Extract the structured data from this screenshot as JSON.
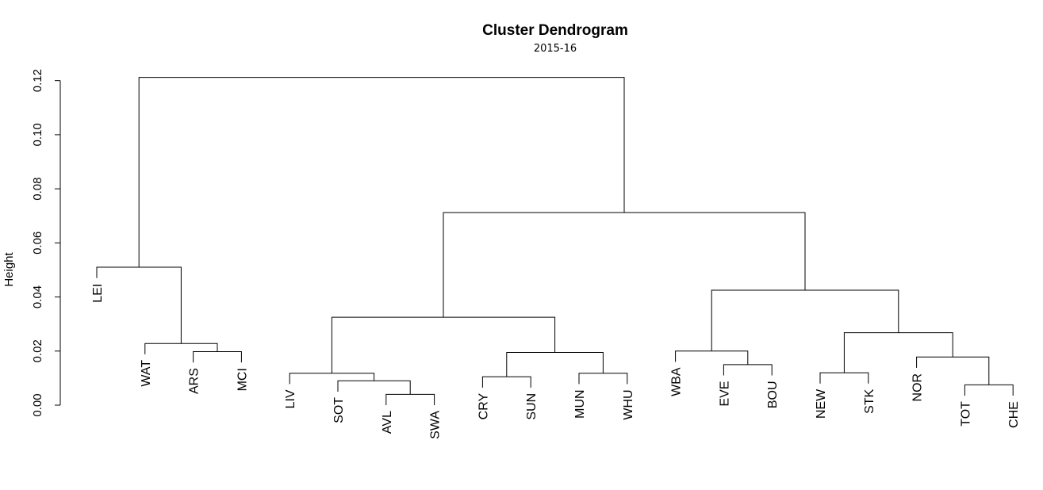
{
  "chart_data": {
    "type": "dendrogram",
    "title": "Cluster Dendrogram",
    "subtitle": "2015-16",
    "ylabel": "Height",
    "ylim": [
      0,
      0.127
    ],
    "yticks": [
      "0.00",
      "0.02",
      "0.04",
      "0.06",
      "0.08",
      "0.10",
      "0.12"
    ],
    "ytick_values": [
      0,
      0.02,
      0.04,
      0.06,
      0.08,
      0.1,
      0.12
    ],
    "leaves": [
      "LEI",
      "WAT",
      "ARS",
      "MCI",
      "LIV",
      "SOT",
      "AVL",
      "SWA",
      "CRY",
      "SUN",
      "MUN",
      "WHU",
      "WBA",
      "EVE",
      "BOU",
      "NEW",
      "STK",
      "NOR",
      "TOT",
      "CHE"
    ],
    "merges": [
      {
        "id": "AVL_SWA",
        "left": "AVL",
        "right": "SWA",
        "height": 0.004
      },
      {
        "id": "SOT_AVL_SWA",
        "left": "SOT",
        "right": "AVL_SWA",
        "height": 0.009
      },
      {
        "id": "LIV_G",
        "left": "LIV",
        "right": "SOT_AVL_SWA",
        "height": 0.0118
      },
      {
        "id": "CRY_SUN",
        "left": "CRY",
        "right": "SUN",
        "height": 0.0105
      },
      {
        "id": "MUN_WHU",
        "left": "MUN",
        "right": "WHU",
        "height": 0.0118
      },
      {
        "id": "CRY_MUN",
        "left": "CRY_SUN",
        "right": "MUN_WHU",
        "height": 0.0195
      },
      {
        "id": "MID",
        "left": "LIV_G",
        "right": "CRY_MUN",
        "height": 0.0325
      },
      {
        "id": "ARS_MCI",
        "left": "ARS",
        "right": "MCI",
        "height": 0.0198
      },
      {
        "id": "WAT_G",
        "left": "WAT",
        "right": "ARS_MCI",
        "height": 0.0228
      },
      {
        "id": "TOP4",
        "left": "LEI",
        "right": "WAT_G",
        "height": 0.051
      },
      {
        "id": "EVE_BOU",
        "left": "EVE",
        "right": "BOU",
        "height": 0.015
      },
      {
        "id": "WBA_G",
        "left": "WBA",
        "right": "EVE_BOU",
        "height": 0.02
      },
      {
        "id": "NEW_STK",
        "left": "NEW",
        "right": "STK",
        "height": 0.012
      },
      {
        "id": "TOT_CHE",
        "left": "TOT",
        "right": "CHE",
        "height": 0.0075
      },
      {
        "id": "NOR_G",
        "left": "NOR",
        "right": "TOT_CHE",
        "height": 0.0178
      },
      {
        "id": "NEW_NOR",
        "left": "NEW_STK",
        "right": "NOR_G",
        "height": 0.0268
      },
      {
        "id": "RIGHT",
        "left": "WBA_G",
        "right": "NEW_NOR",
        "height": 0.0425
      },
      {
        "id": "BIG",
        "left": "MID",
        "right": "RIGHT",
        "height": 0.0712
      },
      {
        "id": "ROOT",
        "left": "TOP4",
        "right": "BIG",
        "height": 0.1212
      }
    ]
  }
}
